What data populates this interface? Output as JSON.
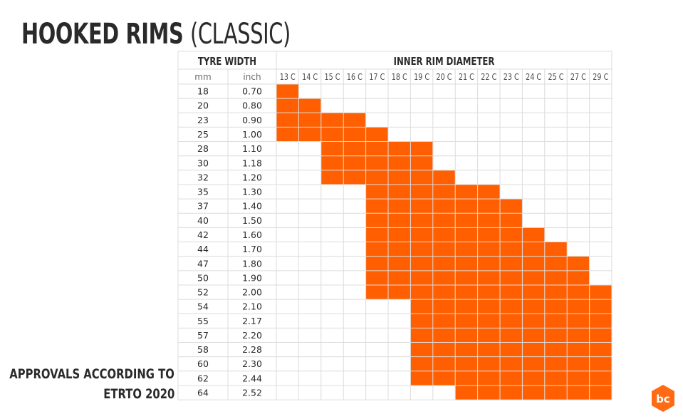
{
  "title_main": "HOOKED RIMS ",
  "title_paren": "(CLASSIC)",
  "note_line1": "APPROVALS ACCORDING TO",
  "note_line2": "ETRTO 2020",
  "colors": {
    "fill": "#ff5f00",
    "grid": "#dcdcdc",
    "text": "#2a2a2a",
    "logo": "#ff6a13"
  },
  "icons": {
    "logo": "bc-logo-icon"
  },
  "chart_data": {
    "type": "table",
    "header_left": "TYRE WIDTH",
    "header_right": "INNER RIM DIAMETER",
    "sub_mm": "mm",
    "sub_inch": "inch",
    "columns": [
      "13 C",
      "14 C",
      "15 C",
      "16 C",
      "17 C",
      "18 C",
      "19 C",
      "20 C",
      "21 C",
      "22 C",
      "23 C",
      "24 C",
      "25 C",
      "27 C",
      "29 C"
    ],
    "rows": [
      {
        "mm": "18",
        "inch": "0.70",
        "approved": [
          13,
          13
        ]
      },
      {
        "mm": "20",
        "inch": "0.80",
        "approved": [
          13,
          14
        ]
      },
      {
        "mm": "23",
        "inch": "0.90",
        "approved": [
          13,
          16
        ]
      },
      {
        "mm": "25",
        "inch": "1.00",
        "approved": [
          13,
          17
        ]
      },
      {
        "mm": "28",
        "inch": "1.10",
        "approved": [
          15,
          19
        ]
      },
      {
        "mm": "30",
        "inch": "1.18",
        "approved": [
          15,
          19
        ]
      },
      {
        "mm": "32",
        "inch": "1.20",
        "approved": [
          15,
          20
        ]
      },
      {
        "mm": "35",
        "inch": "1.30",
        "approved": [
          17,
          22
        ]
      },
      {
        "mm": "37",
        "inch": "1.40",
        "approved": [
          17,
          23
        ]
      },
      {
        "mm": "40",
        "inch": "1.50",
        "approved": [
          17,
          23
        ]
      },
      {
        "mm": "42",
        "inch": "1.60",
        "approved": [
          17,
          24
        ]
      },
      {
        "mm": "44",
        "inch": "1.70",
        "approved": [
          17,
          25
        ]
      },
      {
        "mm": "47",
        "inch": "1.80",
        "approved": [
          17,
          27
        ]
      },
      {
        "mm": "50",
        "inch": "1.90",
        "approved": [
          17,
          27
        ]
      },
      {
        "mm": "52",
        "inch": "2.00",
        "approved": [
          17,
          29
        ]
      },
      {
        "mm": "54",
        "inch": "2.10",
        "approved": [
          19,
          29
        ]
      },
      {
        "mm": "55",
        "inch": "2.17",
        "approved": [
          19,
          29
        ]
      },
      {
        "mm": "57",
        "inch": "2.20",
        "approved": [
          19,
          29
        ]
      },
      {
        "mm": "58",
        "inch": "2.28",
        "approved": [
          19,
          29
        ]
      },
      {
        "mm": "60",
        "inch": "2.30",
        "approved": [
          19,
          29
        ]
      },
      {
        "mm": "62",
        "inch": "2.44",
        "approved": [
          19,
          29
        ]
      },
      {
        "mm": "64",
        "inch": "2.52",
        "approved": [
          21,
          29
        ]
      }
    ]
  }
}
